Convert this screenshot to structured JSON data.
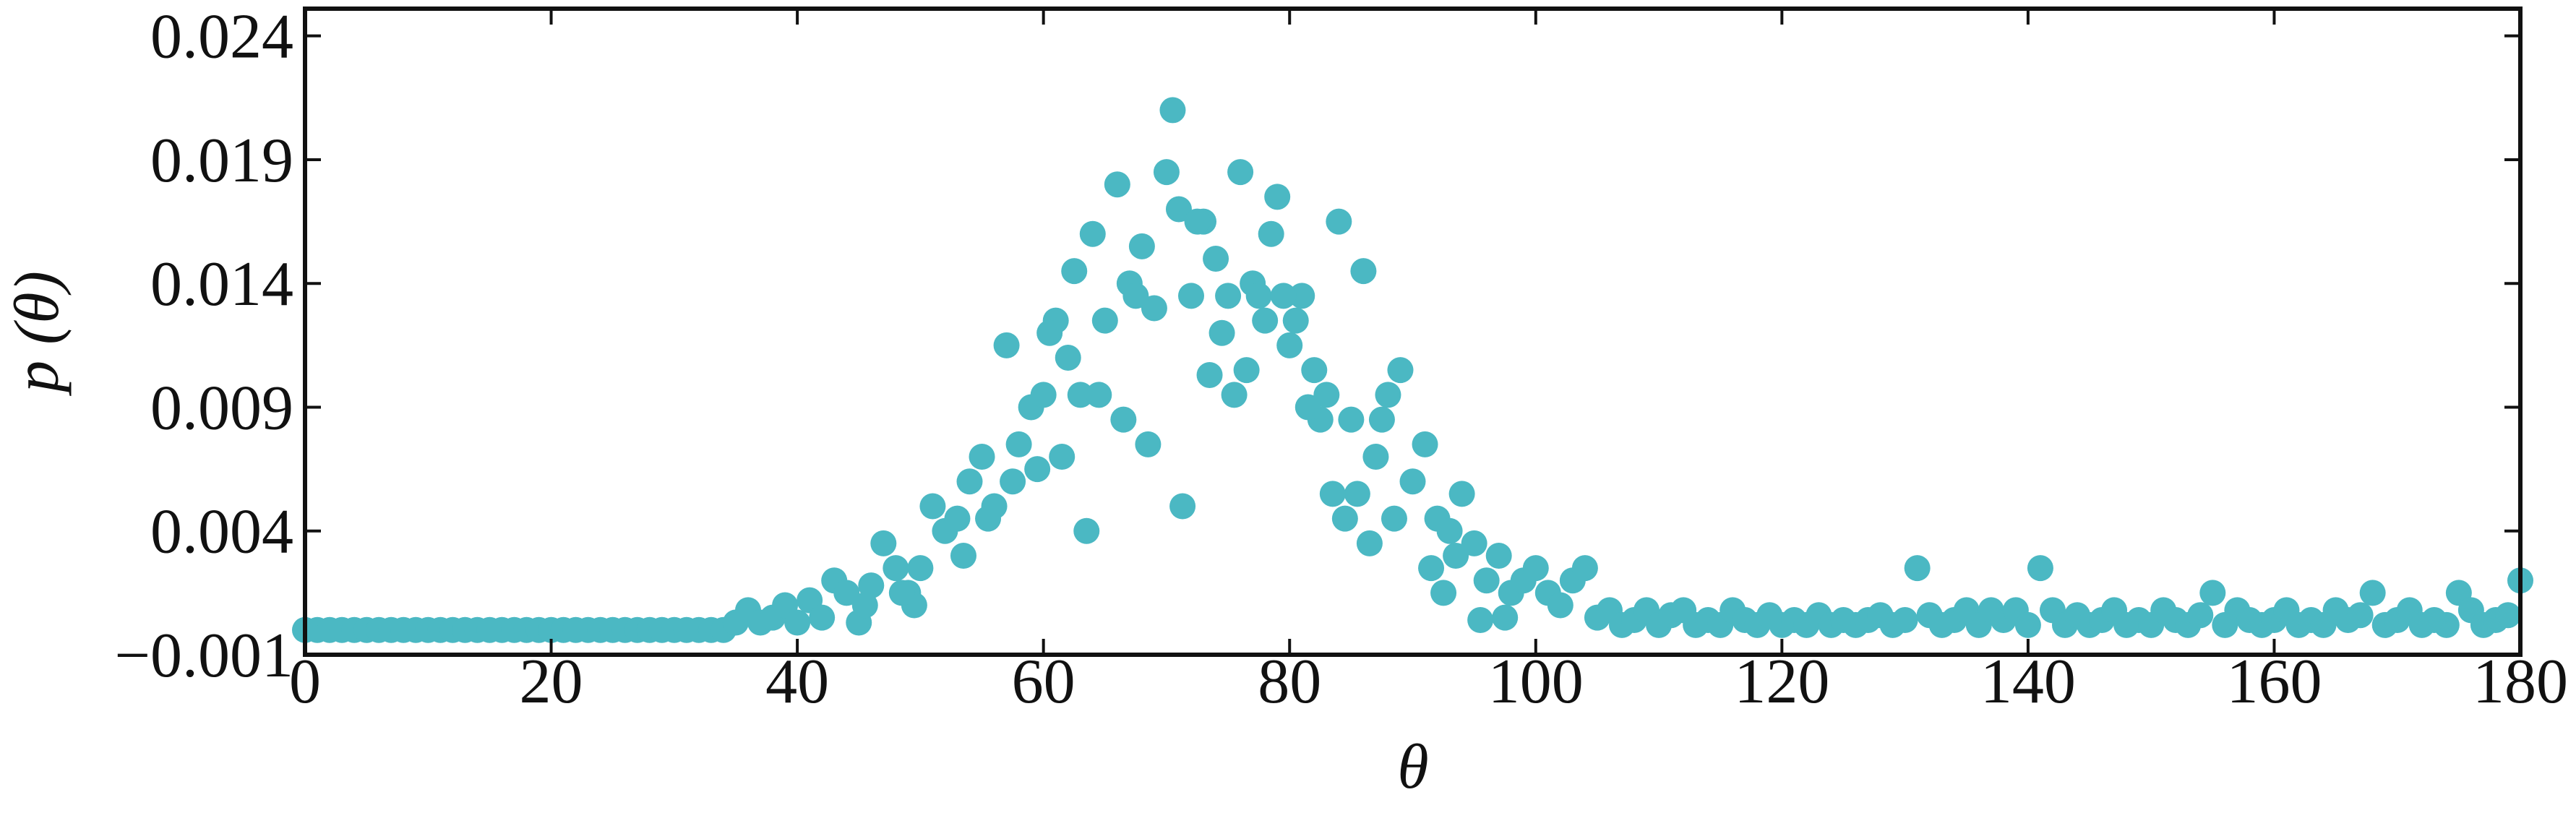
{
  "chart_data": {
    "type": "scatter",
    "xlabel": "θ",
    "ylabel": "p (θ)",
    "xlim": [
      0,
      180
    ],
    "ylim": [
      -0.001,
      0.0251
    ],
    "xticks": [
      0,
      20,
      40,
      60,
      80,
      100,
      120,
      140,
      160,
      180
    ],
    "yticks": [
      {
        "value": -0.001,
        "label": "−0.001"
      },
      0.004,
      0.009,
      0.014,
      0.019,
      0.024
    ],
    "color": "#4bb8c3",
    "x": [
      0,
      1,
      2,
      3,
      4,
      5,
      6,
      7,
      8,
      9,
      10,
      11,
      12,
      13,
      14,
      15,
      16,
      17,
      18,
      19,
      20,
      21,
      22,
      23,
      24,
      25,
      26,
      27,
      28,
      29,
      30,
      31,
      32,
      33,
      34,
      35,
      36,
      37,
      38,
      39,
      40,
      41,
      42,
      43,
      44,
      45,
      46,
      47,
      48,
      49,
      50,
      51,
      52,
      53,
      54,
      55,
      56,
      57,
      58,
      59,
      60,
      61,
      62,
      63,
      64,
      65,
      66,
      67,
      68,
      69,
      70,
      71,
      72,
      73,
      74,
      75,
      76,
      77,
      78,
      79,
      80,
      81,
      82,
      83,
      84,
      85,
      86,
      87,
      88,
      89,
      90,
      91,
      92,
      93,
      94,
      95,
      96,
      97,
      98,
      99,
      100,
      101,
      102,
      103,
      104,
      105,
      57.5,
      63.5,
      68.5,
      71.3,
      73.5,
      77.5,
      64.5,
      67.5,
      70.5,
      72.5,
      75.5,
      79.5,
      80.5,
      82.5,
      85.5,
      86.5,
      60.5,
      62.5,
      61.5,
      66.5,
      74.5,
      76.5,
      78.5,
      81.5,
      83.5,
      84.5,
      87.5,
      88.5,
      91.5,
      92.5,
      93.5,
      95.5,
      97.5,
      55.5,
      53.5,
      49.5,
      45.5,
      48.5,
      59.5,
      106,
      107,
      108,
      109,
      110,
      111,
      112,
      113,
      114,
      115,
      116,
      117,
      118,
      119,
      120,
      121,
      122,
      123,
      124,
      125,
      126,
      127,
      128,
      129,
      130,
      131,
      132,
      133,
      134,
      135,
      136,
      137,
      138,
      139,
      140,
      141,
      142,
      143,
      144,
      145,
      146,
      147,
      148,
      149,
      150,
      151,
      152,
      153,
      154,
      155,
      156,
      157,
      158,
      159,
      160,
      161,
      162,
      163,
      164,
      165,
      166,
      167,
      168,
      169,
      170,
      171,
      172,
      173,
      174,
      175,
      176,
      177,
      178,
      179,
      180
    ],
    "y": [
      0,
      0,
      0,
      0,
      0,
      0,
      0,
      0,
      0,
      0,
      0,
      0,
      0,
      0,
      0,
      0,
      0,
      0,
      0,
      0,
      0,
      0,
      0,
      0,
      0,
      0,
      0,
      0,
      0,
      0,
      0,
      0,
      0,
      0,
      0,
      0.0003,
      0.0008,
      0.0003,
      0.0005,
      0.001,
      0.0003,
      0.0012,
      0.0005,
      0.002,
      0.0015,
      0.0003,
      0.0018,
      0.0035,
      0.0025,
      0.0015,
      0.0025,
      0.005,
      0.004,
      0.0045,
      0.006,
      0.007,
      0.005,
      0.0115,
      0.0075,
      0.009,
      0.0095,
      0.0125,
      0.011,
      0.0095,
      0.016,
      0.0125,
      0.018,
      0.014,
      0.0155,
      0.013,
      0.0185,
      0.017,
      0.0135,
      0.0165,
      0.015,
      0.0135,
      0.0185,
      0.014,
      0.0125,
      0.0175,
      0.0115,
      0.0135,
      0.0105,
      0.0095,
      0.0165,
      0.0085,
      0.0145,
      0.007,
      0.0095,
      0.0105,
      0.006,
      0.0075,
      0.0045,
      0.004,
      0.0055,
      0.0035,
      0.002,
      0.003,
      0.0015,
      0.002,
      0.0025,
      0.0015,
      0.001,
      0.002,
      0.0025,
      0.0005,
      0.006,
      0.004,
      0.0075,
      0.005,
      0.0103,
      0.0135,
      0.0095,
      0.0135,
      0.021,
      0.0165,
      0.0095,
      0.0135,
      0.0125,
      0.0085,
      0.0055,
      0.0035,
      0.012,
      0.0145,
      0.007,
      0.0085,
      0.012,
      0.0105,
      0.016,
      0.009,
      0.0055,
      0.0045,
      0.0085,
      0.0045,
      0.0025,
      0.0015,
      0.003,
      0.0004,
      0.0005,
      0.0045,
      0.003,
      0.001,
      0.001,
      0.0015,
      0.0065,
      0.0008,
      0.0002,
      0.0004,
      0.0008,
      0.0002,
      0.0006,
      0.0008,
      0.0002,
      0.0004,
      0.0002,
      0.0008,
      0.0004,
      0.0002,
      0.0006,
      0.0002,
      0.0004,
      0.0002,
      0.0006,
      0.0002,
      0.0004,
      0.0002,
      0.0004,
      0.0006,
      0.0002,
      0.0004,
      0.0025,
      0.0006,
      0.0002,
      0.0004,
      0.0008,
      0.0002,
      0.0008,
      0.0004,
      0.0008,
      0.0002,
      0.0025,
      0.0008,
      0.0002,
      0.0006,
      0.0002,
      0.0004,
      0.0008,
      0.0002,
      0.0004,
      0.0002,
      0.0008,
      0.0004,
      0.0002,
      0.0006,
      0.0015,
      0.0002,
      0.0008,
      0.0004,
      0.0002,
      0.0004,
      0.0008,
      0.0002,
      0.0004,
      0.0002,
      0.0008,
      0.0004,
      0.0006,
      0.0015,
      0.0002,
      0.0004,
      0.0008,
      0.0002,
      0.0004,
      0.0002,
      0.0015,
      0.0008,
      0.0002,
      0.0004,
      0.0006,
      0.002
    ]
  }
}
